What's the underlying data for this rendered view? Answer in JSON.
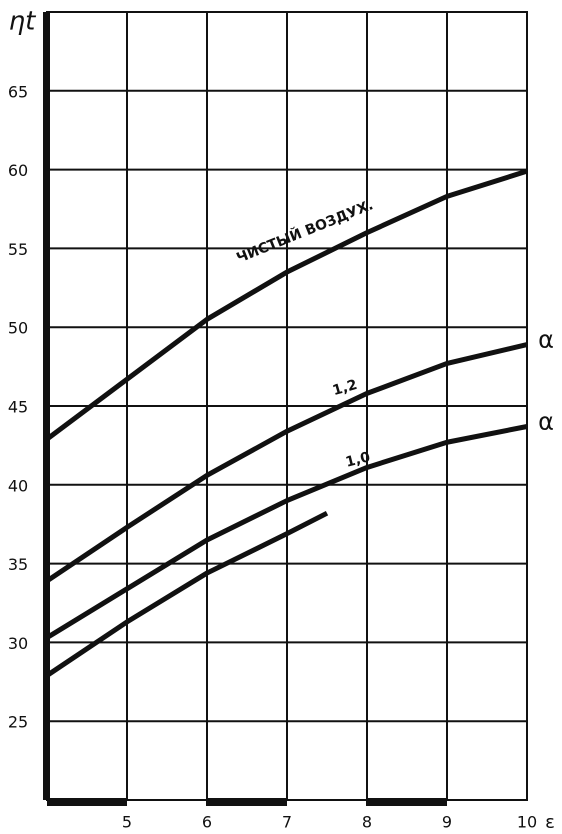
{
  "chart_data": {
    "type": "line",
    "ylabel": "ηt",
    "xlabel": "ε",
    "xlim": [
      4,
      10
    ],
    "xticks": [
      5,
      6,
      7,
      8,
      9,
      10
    ],
    "ylim": [
      20,
      70
    ],
    "yticks": [
      25,
      30,
      35,
      40,
      45,
      50,
      55,
      60,
      65
    ],
    "grid": true,
    "color": "#111111",
    "series": [
      {
        "name": "ЧИСТЫЙ ВОЗДУХ.",
        "x": [
          4,
          5,
          6,
          7,
          8,
          9,
          10
        ],
        "values": [
          42.9,
          46.7,
          50.5,
          53.5,
          56.0,
          58.3,
          59.9
        ]
      },
      {
        "name": "1,2",
        "end_label": "α",
        "x": [
          4,
          5,
          6,
          7,
          8,
          9,
          10
        ],
        "values": [
          33.9,
          37.3,
          40.6,
          43.4,
          45.8,
          47.7,
          48.9
        ]
      },
      {
        "name": "1,0",
        "end_label": "α",
        "x": [
          4,
          5,
          6,
          7,
          8,
          9,
          10
        ],
        "values": [
          30.3,
          33.4,
          36.5,
          39.0,
          41.1,
          42.7,
          43.7
        ]
      },
      {
        "x": [
          4,
          5,
          6,
          7,
          7.5
        ],
        "values": [
          27.9,
          31.3,
          34.4,
          36.9,
          38.2
        ]
      }
    ]
  }
}
